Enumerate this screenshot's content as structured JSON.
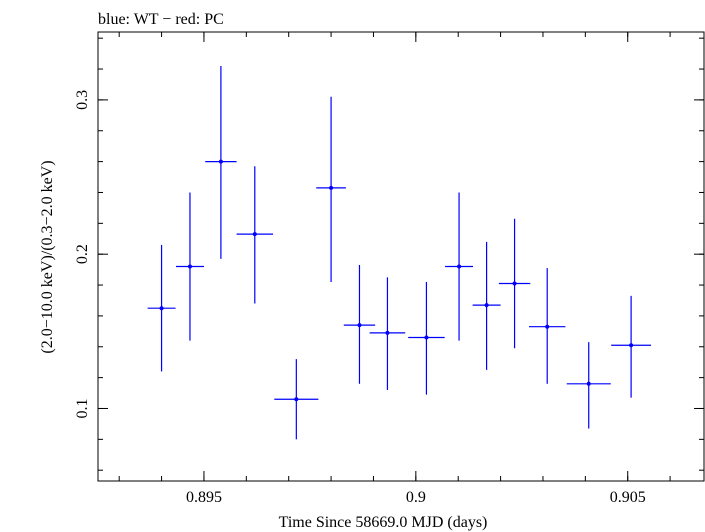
{
  "chart_data": {
    "type": "scatter",
    "title": "blue: WT − red: PC",
    "xlabel": "Time Since 58669.0 MJD (days)",
    "ylabel": "(2.0−10.0 keV)/(0.3−2.0 keV)",
    "xlim": [
      0.8925,
      0.9068
    ],
    "ylim": [
      0.053,
      0.344
    ],
    "xticks": [
      {
        "value": 0.895,
        "label": "0.895"
      },
      {
        "value": 0.9,
        "label": "0.9"
      },
      {
        "value": 0.905,
        "label": "0.905"
      }
    ],
    "yticks": [
      {
        "value": 0.1,
        "label": "0.1"
      },
      {
        "value": 0.2,
        "label": "0.2"
      },
      {
        "value": 0.3,
        "label": "0.3"
      }
    ],
    "x_minor_step": 0.001,
    "y_minor_step": 0.02,
    "grid": false,
    "series": [
      {
        "color": "#0000ff",
        "points": [
          {
            "x": 0.894,
            "xerr": 0.00033,
            "y": 0.165,
            "ylo": 0.124,
            "yhi": 0.206
          },
          {
            "x": 0.89467,
            "xerr": 0.00033,
            "y": 0.192,
            "ylo": 0.144,
            "yhi": 0.24
          },
          {
            "x": 0.8954,
            "xerr": 0.00037,
            "y": 0.26,
            "ylo": 0.197,
            "yhi": 0.322
          },
          {
            "x": 0.8962,
            "xerr": 0.00043,
            "y": 0.213,
            "ylo": 0.168,
            "yhi": 0.257
          },
          {
            "x": 0.89718,
            "xerr": 0.00052,
            "y": 0.106,
            "ylo": 0.08,
            "yhi": 0.132
          },
          {
            "x": 0.898,
            "xerr": 0.00035,
            "y": 0.243,
            "ylo": 0.182,
            "yhi": 0.302
          },
          {
            "x": 0.89867,
            "xerr": 0.00037,
            "y": 0.154,
            "ylo": 0.116,
            "yhi": 0.193
          },
          {
            "x": 0.89933,
            "xerr": 0.00042,
            "y": 0.149,
            "ylo": 0.112,
            "yhi": 0.185
          },
          {
            "x": 0.90025,
            "xerr": 0.00043,
            "y": 0.146,
            "ylo": 0.109,
            "yhi": 0.182
          },
          {
            "x": 0.90102,
            "xerr": 0.00033,
            "y": 0.192,
            "ylo": 0.144,
            "yhi": 0.24
          },
          {
            "x": 0.90167,
            "xerr": 0.00033,
            "y": 0.167,
            "ylo": 0.125,
            "yhi": 0.208
          },
          {
            "x": 0.90233,
            "xerr": 0.00037,
            "y": 0.181,
            "ylo": 0.139,
            "yhi": 0.223
          },
          {
            "x": 0.9031,
            "xerr": 0.00043,
            "y": 0.153,
            "ylo": 0.116,
            "yhi": 0.191
          },
          {
            "x": 0.90408,
            "xerr": 0.00052,
            "y": 0.116,
            "ylo": 0.087,
            "yhi": 0.143
          },
          {
            "x": 0.90508,
            "xerr": 0.00047,
            "y": 0.141,
            "ylo": 0.107,
            "yhi": 0.173
          }
        ]
      }
    ]
  }
}
